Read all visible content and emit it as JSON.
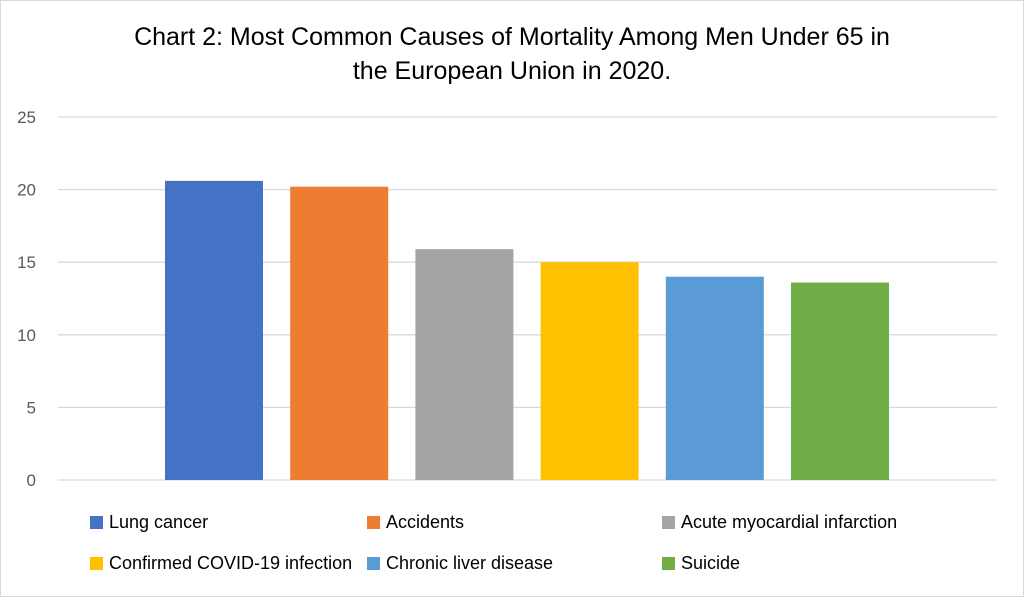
{
  "chart_data": {
    "type": "bar",
    "title_line1": "Chart 2: Most Common Causes of Mortality Among Men Under 65 in",
    "title_line2": "the European Union in 2020.",
    "xlabel": "",
    "ylabel": "",
    "ylim": [
      0,
      25
    ],
    "yticks": [
      "0",
      "5",
      "10",
      "15",
      "20",
      "25"
    ],
    "grid": true,
    "legend_position": "bottom",
    "series": [
      {
        "name": "Lung cancer",
        "value": 20.6,
        "color": "#4472c4"
      },
      {
        "name": "Accidents",
        "value": 20.2,
        "color": "#ed7d31"
      },
      {
        "name": "Acute myocardial infarction",
        "value": 15.9,
        "color": "#a5a5a5"
      },
      {
        "name": "Confirmed COVID-19 infection",
        "value": 15.0,
        "color": "#ffc000"
      },
      {
        "name": "Chronic liver disease",
        "value": 14.0,
        "color": "#5b9bd5"
      },
      {
        "name": "Suicide",
        "value": 13.6,
        "color": "#70ad47"
      }
    ]
  }
}
